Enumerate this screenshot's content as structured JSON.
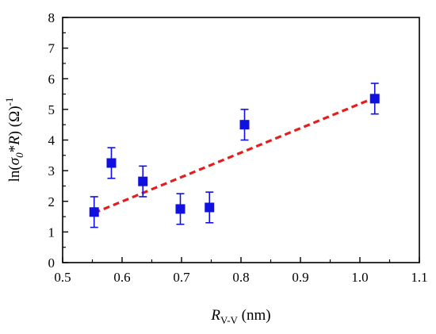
{
  "chart_data": {
    "type": "scatter",
    "xlabel": {
      "main": "R",
      "sub": "V-V",
      "unit": " (nm)"
    },
    "ylabel": {
      "prefix": "ln(",
      "sigma": "σ",
      "sub": "0",
      "mid": "*",
      "r": "R",
      "suffix": ") (Ω)",
      "sup": "-1"
    },
    "xlim": [
      0.5,
      1.1
    ],
    "ylim": [
      0,
      8
    ],
    "xticks": [
      0.5,
      0.6,
      0.7,
      0.8,
      0.9,
      1.0,
      1.1
    ],
    "xtick_labels": [
      "0.5",
      "0.6",
      "0.7",
      "0.8",
      "0.9",
      "1.0",
      "1.1"
    ],
    "yticks": [
      0,
      1,
      2,
      3,
      4,
      5,
      6,
      7,
      8
    ],
    "ytick_labels": [
      "0",
      "1",
      "2",
      "3",
      "4",
      "5",
      "6",
      "7",
      "8"
    ],
    "grid": false,
    "legend": "none",
    "series": [
      {
        "marker": "square",
        "color": "#1010e0",
        "points": [
          {
            "x": 0.553,
            "y": 1.65,
            "err": 0.5
          },
          {
            "x": 0.582,
            "y": 3.25,
            "err": 0.5
          },
          {
            "x": 0.635,
            "y": 2.65,
            "err": 0.5
          },
          {
            "x": 0.698,
            "y": 1.75,
            "err": 0.5
          },
          {
            "x": 0.747,
            "y": 1.8,
            "err": 0.5
          },
          {
            "x": 0.806,
            "y": 4.5,
            "err": 0.5
          },
          {
            "x": 1.025,
            "y": 5.35,
            "err": 0.5
          }
        ]
      }
    ],
    "fit_line": {
      "style": "dashed",
      "color": "#e81c1c",
      "x": [
        0.553,
        1.025
      ],
      "y": [
        1.62,
        5.38
      ]
    }
  }
}
